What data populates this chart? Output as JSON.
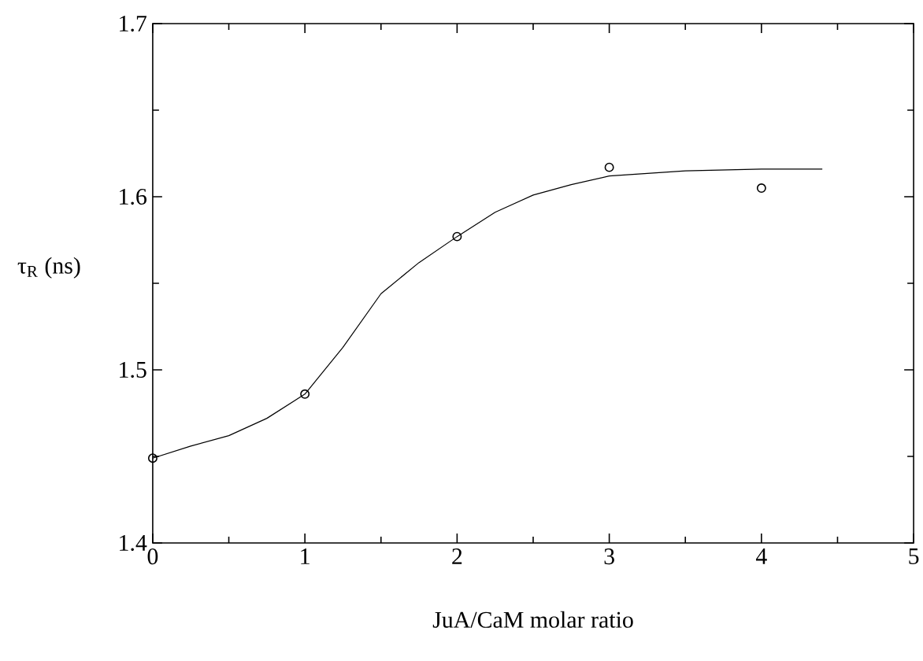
{
  "chart_data": {
    "type": "scatter",
    "xlabel": "JuA/CaM molar ratio",
    "ylabel": "τ$_{R}$ (ns)",
    "xlim": [
      0,
      5
    ],
    "ylim": [
      1.4,
      1.7
    ],
    "xticks": [
      0,
      1,
      2,
      3,
      4,
      5
    ],
    "yticks": [
      1.4,
      1.5,
      1.6,
      1.7
    ],
    "marker": "circle",
    "series": [
      {
        "color": "#000000",
        "x": [
          0,
          1,
          2,
          3,
          4
        ],
        "values": [
          1.449,
          1.486,
          1.577,
          1.617,
          1.605
        ]
      },
      {
        "type": "line",
        "color": "#000000",
        "marker": "none",
        "x": [
          0,
          0.25,
          0.5,
          0.75,
          1,
          1.25,
          1.5,
          1.75,
          2,
          2.25,
          2.5,
          2.75,
          3,
          3.5,
          4,
          4.4
        ],
        "values": [
          1.449,
          1.456,
          1.462,
          1.472,
          1.486,
          1.513,
          1.544,
          1.562,
          1.577,
          1.591,
          1.601,
          1.607,
          1.612,
          1.615,
          1.616,
          1.616
        ]
      }
    ]
  }
}
